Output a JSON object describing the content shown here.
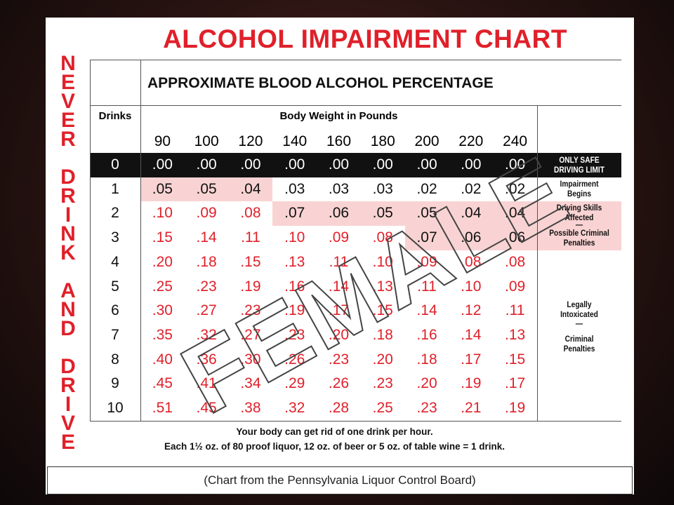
{
  "title": "ALCOHOL IMPAIRMENT CHART",
  "side_text": [
    "NEVER",
    "DRINK",
    "AND",
    "DRIVE"
  ],
  "subtitle": "APPROXIMATE BLOOD ALCOHOL PERCENTAGE",
  "table": {
    "drinks_header": "Drinks",
    "weight_header": "Body Weight in Pounds",
    "weights": [
      90,
      100,
      120,
      140,
      160,
      180,
      200,
      220,
      240
    ],
    "drinks": [
      0,
      1,
      2,
      3,
      4,
      5,
      6,
      7,
      8,
      9,
      10
    ],
    "rows": [
      [
        ".00",
        ".00",
        ".00",
        ".00",
        ".00",
        ".00",
        ".00",
        ".00",
        ".00"
      ],
      [
        ".05",
        ".05",
        ".04",
        ".03",
        ".03",
        ".03",
        ".02",
        ".02",
        ".02"
      ],
      [
        ".10",
        ".09",
        ".08",
        ".07",
        ".06",
        ".05",
        ".05",
        ".04",
        ".04"
      ],
      [
        ".15",
        ".14",
        ".11",
        ".10",
        ".09",
        ".08",
        ".07",
        ".06",
        ".06"
      ],
      [
        ".20",
        ".18",
        ".15",
        ".13",
        ".11",
        ".10",
        ".09",
        ".08",
        ".08"
      ],
      [
        ".25",
        ".23",
        ".19",
        ".16",
        ".14",
        ".13",
        ".11",
        ".10",
        ".09"
      ],
      [
        ".30",
        ".27",
        ".23",
        ".19",
        ".17",
        ".15",
        ".14",
        ".12",
        ".11"
      ],
      [
        ".35",
        ".32",
        ".27",
        ".23",
        ".20",
        ".18",
        ".16",
        ".14",
        ".13"
      ],
      [
        ".40",
        ".36",
        ".30",
        ".26",
        ".23",
        ".20",
        ".18",
        ".17",
        ".15"
      ],
      [
        ".45",
        ".41",
        ".34",
        ".29",
        ".26",
        ".23",
        ".20",
        ".19",
        ".17"
      ],
      [
        ".51",
        ".45",
        ".38",
        ".32",
        ".28",
        ".25",
        ".23",
        ".21",
        ".19"
      ]
    ]
  },
  "notes": {
    "safe": "ONLY SAFE DRIVING LIMIT",
    "impairment": "Impairment Begins",
    "affected": "Driving Skills Affected",
    "dash1": "—",
    "possible": "Possible Criminal Penalties",
    "legally": "Legally Intoxicated",
    "dash2": "—",
    "criminal": "Criminal Penalties"
  },
  "footer": [
    "Your body can get rid of one drink per hour.",
    "Each 1½ oz. of 80 proof liquor, 12 oz. of beer or 5 oz. of table wine = 1 drink."
  ],
  "source": "(Chart from the Pennsylvania Liquor Control Board)",
  "watermark": "FEMALE"
}
